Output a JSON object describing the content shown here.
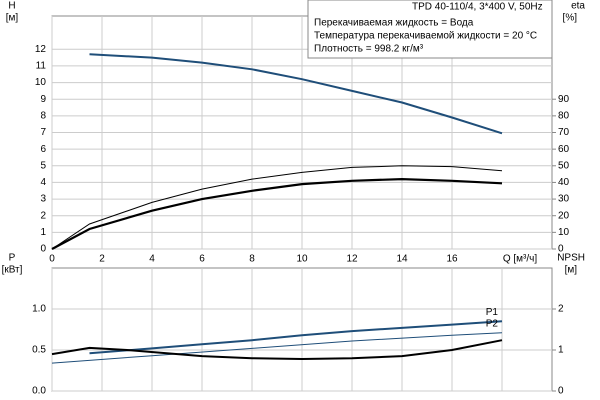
{
  "chart_data": [
    {
      "type": "line",
      "title": "TPD 40-110/4, 3*400 V, 50Hz",
      "notes": [
        "Перекачиваемая жидкость = Вода",
        "Температура перекачиваемой жидкости = 20 °C",
        "Плотность = 998.2 кг/м³"
      ],
      "ylabel": "H",
      "yunit": "[м]",
      "y2label": "eta",
      "y2unit": "[%]",
      "xlabel": "Q [м³/ч]",
      "xlim": [
        0,
        20
      ],
      "xticks": [
        0,
        2,
        4,
        6,
        8,
        10,
        12,
        14,
        16
      ],
      "ylim": [
        0,
        14
      ],
      "yticks": [
        0,
        1,
        2,
        3,
        4,
        5,
        6,
        7,
        8,
        9,
        10,
        11,
        12
      ],
      "y2lim": [
        0,
        140
      ],
      "y2ticks": [
        0,
        10,
        20,
        30,
        40,
        50,
        60,
        70,
        80,
        90
      ],
      "grid": true,
      "series": [
        {
          "color": "#1f4e79",
          "width": 2,
          "x": [
            1.5,
            4,
            6,
            8,
            10,
            12,
            14,
            16,
            18
          ],
          "values": [
            11.7,
            11.5,
            11.2,
            10.8,
            10.2,
            9.5,
            8.8,
            7.9,
            6.95
          ]
        },
        {
          "color": "#000000",
          "width": 2.2,
          "axis": "y2",
          "x": [
            0,
            1.5,
            4,
            6,
            8,
            10,
            12,
            14,
            16,
            18
          ],
          "values": [
            0,
            12,
            23,
            30,
            35,
            39,
            41,
            42,
            41,
            39.5
          ]
        },
        {
          "color": "#000000",
          "width": 1,
          "axis": "y2",
          "x": [
            0,
            1.5,
            4,
            6,
            8,
            10,
            12,
            14,
            16,
            18
          ],
          "values": [
            0,
            15,
            28,
            36,
            42,
            46,
            49,
            50,
            49.5,
            47
          ]
        }
      ]
    },
    {
      "type": "line",
      "ylabel": "P",
      "yunit": "[кВт]",
      "y2label": "NPSH",
      "y2unit": "[м]",
      "xlim": [
        0,
        20
      ],
      "xticks": [
        0,
        2,
        4,
        6,
        8,
        10,
        12,
        14,
        16,
        18
      ],
      "ylim": [
        0,
        1.5
      ],
      "yticks": [
        {
          "value": 0,
          "label": "0.0"
        },
        0.5,
        {
          "value": 1,
          "label": "1.0"
        }
      ],
      "y2lim": [
        0,
        3
      ],
      "y2ticks": [
        0,
        1,
        2
      ],
      "grid": true,
      "series": [
        {
          "name": "P1",
          "color": "#1f4e79",
          "width": 2,
          "x": [
            1.5,
            4,
            6,
            8,
            10,
            12,
            14,
            16,
            18
          ],
          "values": [
            0.46,
            0.52,
            0.57,
            0.62,
            0.68,
            0.73,
            0.77,
            0.81,
            0.85
          ]
        },
        {
          "name": "P2",
          "color": "#1f4e79",
          "width": 1,
          "x": [
            0,
            4,
            8,
            12,
            16,
            18
          ],
          "values": [
            0.34,
            0.43,
            0.52,
            0.61,
            0.68,
            0.71
          ]
        },
        {
          "color": "#000000",
          "width": 2,
          "axis": "y2",
          "x": [
            0,
            1.5,
            3,
            6,
            8,
            10,
            12,
            14,
            16,
            18
          ],
          "values": [
            0.9,
            1.05,
            1.0,
            0.85,
            0.8,
            0.78,
            0.8,
            0.85,
            1.0,
            1.24
          ]
        }
      ]
    }
  ]
}
